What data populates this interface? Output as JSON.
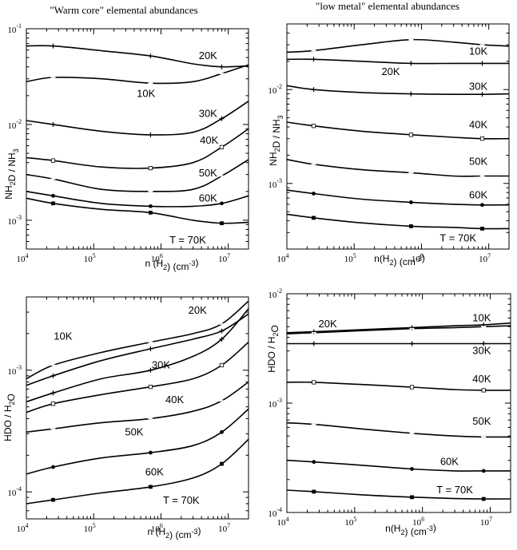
{
  "column_titles": [
    "\"Warm core\" elemental abundances",
    "\"low metal\" elemental abundances"
  ],
  "chart_data": [
    {
      "type": "line",
      "title": "\"Warm core\" elemental abundances",
      "xlabel": "n (H2) (cm-3)",
      "ylabel": "NH2D / NH3",
      "xscale": "log",
      "yscale": "log",
      "xlim": [
        10000,
        20000000
      ],
      "ylim": [
        0.0005,
        0.1
      ],
      "xticks": [
        {
          "base": "10",
          "exp": "4",
          "v": 10000
        },
        {
          "base": "10",
          "exp": "5",
          "v": 100000
        },
        {
          "base": "10",
          "exp": "6",
          "v": 1000000
        },
        {
          "base": "10",
          "exp": "7",
          "v": 10000000
        }
      ],
      "yticks": [
        {
          "base": "10",
          "exp": "-3",
          "v": 0.001
        },
        {
          "base": "10",
          "exp": "-2",
          "v": 0.01
        },
        {
          "base": "10",
          "exp": "-1",
          "v": 0.1
        }
      ],
      "x": [
        10000,
        25000,
        130000,
        700000,
        3000000,
        8000000,
        20000000
      ],
      "series": [
        {
          "name": "20K",
          "values": [
            0.066,
            0.066,
            0.059,
            0.052,
            0.043,
            0.04,
            0.041
          ],
          "marker": "plus"
        },
        {
          "name": "10K",
          "values": [
            0.028,
            0.031,
            0.03,
            0.027,
            0.028,
            0.034,
            0.042
          ],
          "marker": "dash"
        },
        {
          "name": "30K",
          "values": [
            0.011,
            0.01,
            0.0085,
            0.0078,
            0.0083,
            0.0115,
            0.0175
          ],
          "marker": "plus"
        },
        {
          "name": "40K",
          "values": [
            0.0045,
            0.0042,
            0.0036,
            0.0035,
            0.004,
            0.0058,
            0.009
          ],
          "marker": "square"
        },
        {
          "name": "50K",
          "values": [
            0.003,
            0.0027,
            0.0021,
            0.002,
            0.0021,
            0.0029,
            0.0043
          ],
          "marker": "dash"
        },
        {
          "name": "60K",
          "values": [
            0.002,
            0.0018,
            0.0015,
            0.0014,
            0.0014,
            0.0015,
            0.0018
          ],
          "marker": "circle"
        },
        {
          "name": "T = 70K",
          "values": [
            0.0017,
            0.0015,
            0.0013,
            0.0012,
            0.001,
            0.00093,
            0.00095
          ],
          "marker": "filled-square"
        }
      ],
      "curve_labels": [
        {
          "text": "20K",
          "at": [
            5000000,
            0.052
          ]
        },
        {
          "text": "10K",
          "at": [
            600000,
            0.021
          ]
        },
        {
          "text": "30K",
          "at": [
            5000000,
            0.013
          ]
        },
        {
          "text": "40K",
          "at": [
            5200000,
            0.0068
          ]
        },
        {
          "text": "50K",
          "at": [
            5000000,
            0.0031
          ]
        },
        {
          "text": "60K",
          "at": [
            5000000,
            0.0017
          ]
        },
        {
          "text": "T = 70K",
          "at": [
            2500000,
            0.00062
          ]
        }
      ]
    },
    {
      "type": "line",
      "title": "\"low metal\" elemental abundances",
      "xlabel": "n(H2) (cm-3)",
      "ylabel": "NH2D / NH3",
      "xscale": "log",
      "yscale": "log",
      "xlim": [
        10000,
        20000000
      ],
      "ylim": [
        0.0002,
        0.05
      ],
      "xticks": [
        {
          "base": "10",
          "exp": "4",
          "v": 10000
        },
        {
          "base": "10",
          "exp": "5",
          "v": 100000
        },
        {
          "base": "10",
          "exp": "6",
          "v": 1000000
        },
        {
          "base": "10",
          "exp": "7",
          "v": 10000000
        }
      ],
      "yticks": [
        {
          "base": "10",
          "exp": "-3",
          "v": 0.001
        },
        {
          "base": "10",
          "exp": "-2",
          "v": 0.01
        }
      ],
      "x": [
        10000,
        25000,
        130000,
        700000,
        3000000,
        8000000,
        20000000
      ],
      "series": [
        {
          "name": "10K",
          "values": [
            0.025,
            0.026,
            0.03,
            0.034,
            0.032,
            0.03,
            0.029
          ],
          "marker": "dash"
        },
        {
          "name": "20K",
          "values": [
            0.021,
            0.021,
            0.02,
            0.019,
            0.019,
            0.019,
            0.019
          ],
          "marker": "plus"
        },
        {
          "name": "30K",
          "values": [
            0.011,
            0.01,
            0.0093,
            0.009,
            0.0089,
            0.0089,
            0.009
          ],
          "marker": "plus"
        },
        {
          "name": "40K",
          "values": [
            0.0045,
            0.0041,
            0.0036,
            0.0033,
            0.0031,
            0.003,
            0.003
          ],
          "marker": "square"
        },
        {
          "name": "50K",
          "values": [
            0.0018,
            0.0016,
            0.0014,
            0.0013,
            0.0012,
            0.0012,
            0.0012
          ],
          "marker": "dash"
        },
        {
          "name": "60K",
          "values": [
            0.00085,
            0.00078,
            0.00068,
            0.00063,
            0.0006,
            0.00059,
            0.00059
          ],
          "marker": "circle"
        },
        {
          "name": "T = 70K",
          "values": [
            0.00047,
            0.00043,
            0.00038,
            0.00035,
            0.00034,
            0.00033,
            0.00033
          ],
          "marker": "filled-square"
        }
      ],
      "curve_labels": [
        {
          "text": "10K",
          "at": [
            7000000,
            0.0255
          ]
        },
        {
          "text": "20K",
          "at": [
            350000,
            0.0155
          ]
        },
        {
          "text": "30K",
          "at": [
            7000000,
            0.0108
          ]
        },
        {
          "text": "40K",
          "at": [
            7000000,
            0.0042
          ]
        },
        {
          "text": "50K",
          "at": [
            7000000,
            0.0017
          ]
        },
        {
          "text": "60K",
          "at": [
            7000000,
            0.00075
          ]
        },
        {
          "text": "T = 70K",
          "at": [
            3500000,
            0.00026
          ]
        }
      ]
    },
    {
      "type": "line",
      "title": "",
      "xlabel": "n (H2) (cm-3)",
      "ylabel": "HDO / H2O",
      "xscale": "log",
      "yscale": "log",
      "xlim": [
        10000,
        20000000
      ],
      "ylim": [
        6e-05,
        0.004
      ],
      "xticks": [
        {
          "base": "10",
          "exp": "4",
          "v": 10000
        },
        {
          "base": "10",
          "exp": "5",
          "v": 100000
        },
        {
          "base": "10",
          "exp": "6",
          "v": 1000000
        },
        {
          "base": "10",
          "exp": "7",
          "v": 10000000
        }
      ],
      "yticks": [
        {
          "base": "10",
          "exp": "-4",
          "v": 0.0001
        },
        {
          "base": "10",
          "exp": "-3",
          "v": 0.001
        }
      ],
      "x": [
        10000,
        25000,
        130000,
        700000,
        3000000,
        8000000,
        20000000
      ],
      "series": [
        {
          "name": "20K",
          "values": [
            0.00085,
            0.0011,
            0.0014,
            0.0017,
            0.002,
            0.0024,
            0.0037
          ],
          "marker": "dash"
        },
        {
          "name": "10K",
          "values": [
            0.00075,
            0.0009,
            0.0012,
            0.0015,
            0.0018,
            0.0021,
            0.0029
          ],
          "marker": "plus"
        },
        {
          "name": "30K",
          "values": [
            0.00055,
            0.00065,
            0.00085,
            0.001,
            0.0013,
            0.0018,
            0.0032
          ],
          "marker": "plus"
        },
        {
          "name": "40K",
          "values": [
            0.00045,
            0.00053,
            0.00063,
            0.00073,
            0.00085,
            0.0011,
            0.0017
          ],
          "marker": "square"
        },
        {
          "name": "50K",
          "values": [
            0.00031,
            0.00033,
            0.00037,
            0.0004,
            0.00046,
            0.00056,
            0.0008
          ],
          "marker": "dash"
        },
        {
          "name": "60K",
          "values": [
            0.00014,
            0.00016,
            0.00019,
            0.00021,
            0.00024,
            0.00031,
            0.00048
          ],
          "marker": "circle"
        },
        {
          "name": "T = 70K",
          "values": [
            8e-05,
            8.6e-05,
            9.8e-05,
            0.00011,
            0.00013,
            0.00017,
            0.00027
          ],
          "marker": "filled-square"
        }
      ],
      "curve_labels": [
        {
          "text": "20K",
          "at": [
            3500000,
            0.0031
          ]
        },
        {
          "text": "10K",
          "at": [
            35000,
            0.0019
          ]
        },
        {
          "text": "30K",
          "at": [
            1000000,
            0.0011
          ]
        },
        {
          "text": "40K",
          "at": [
            1600000,
            0.00057
          ]
        },
        {
          "text": "50K",
          "at": [
            400000,
            0.00031
          ]
        },
        {
          "text": "60K",
          "at": [
            800000,
            0.000145
          ]
        },
        {
          "text": "T = 70K",
          "at": [
            2000000,
            8.5e-05
          ]
        }
      ]
    },
    {
      "type": "line",
      "title": "",
      "xlabel": "n(H2) (cm-3)",
      "ylabel": "HDO / H2O",
      "xscale": "log",
      "yscale": "log",
      "xlim": [
        10000,
        20000000
      ],
      "ylim": [
        0.0001,
        0.01
      ],
      "xticks": [
        {
          "base": "10",
          "exp": "4",
          "v": 10000
        },
        {
          "base": "10",
          "exp": "5",
          "v": 100000
        },
        {
          "base": "10",
          "exp": "6",
          "v": 1000000
        },
        {
          "base": "10",
          "exp": "7",
          "v": 10000000
        }
      ],
      "yticks": [
        {
          "base": "10",
          "exp": "-4",
          "v": 0.0001
        },
        {
          "base": "10",
          "exp": "-3",
          "v": 0.001
        },
        {
          "base": "10",
          "exp": "-2",
          "v": 0.01
        }
      ],
      "x": [
        10000,
        25000,
        130000,
        700000,
        3000000,
        8000000,
        20000000
      ],
      "series": [
        {
          "name": "10K",
          "values": [
            0.0044,
            0.0045,
            0.0047,
            0.0049,
            0.0051,
            0.0052,
            0.0054
          ],
          "marker": "plus"
        },
        {
          "name": "20K",
          "values": [
            0.0043,
            0.0044,
            0.0046,
            0.0048,
            0.0049,
            0.005,
            0.0051
          ],
          "marker": "dash"
        },
        {
          "name": "30K",
          "values": [
            0.0035,
            0.0035,
            0.0035,
            0.0035,
            0.0035,
            0.0035,
            0.0035
          ],
          "marker": "plus"
        },
        {
          "name": "40K",
          "values": [
            0.00155,
            0.00155,
            0.00148,
            0.0014,
            0.00133,
            0.00131,
            0.00131
          ],
          "marker": "square"
        },
        {
          "name": "50K",
          "values": [
            0.00066,
            0.00064,
            0.00058,
            0.00053,
            0.0005,
            0.00049,
            0.00049
          ],
          "marker": "dash"
        },
        {
          "name": "60K",
          "values": [
            0.0003,
            0.00029,
            0.00027,
            0.00025,
            0.00024,
            0.00024,
            0.00024
          ],
          "marker": "circle"
        },
        {
          "name": "T = 70K",
          "values": [
            0.00016,
            0.000155,
            0.000145,
            0.000138,
            0.000134,
            0.000133,
            0.000133
          ],
          "marker": "filled-square"
        }
      ],
      "curve_labels": [
        {
          "text": "10K",
          "at": [
            7500000,
            0.006
          ]
        },
        {
          "text": "20K",
          "at": [
            40000,
            0.0053
          ]
        },
        {
          "text": "30K",
          "at": [
            7500000,
            0.003
          ]
        },
        {
          "text": "40K",
          "at": [
            7500000,
            0.00165
          ]
        },
        {
          "text": "50K",
          "at": [
            7500000,
            0.00068
          ]
        },
        {
          "text": "60K",
          "at": [
            2500000,
            0.00029
          ]
        },
        {
          "text": "T = 70K",
          "at": [
            3000000,
            0.00016
          ]
        }
      ]
    }
  ]
}
